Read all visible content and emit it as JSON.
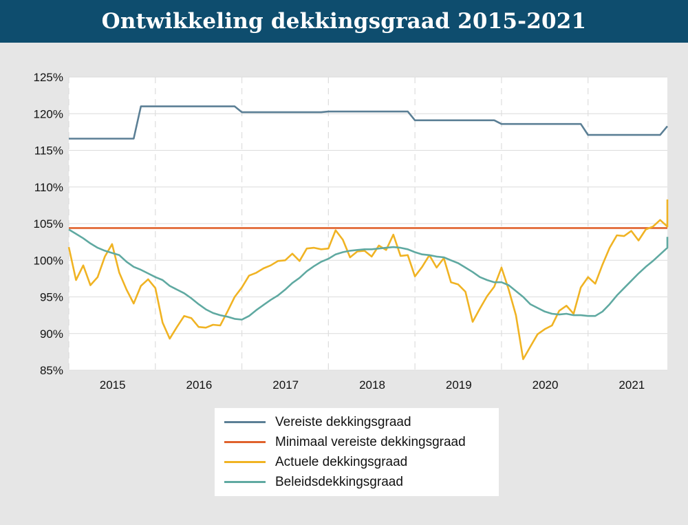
{
  "chart_data": {
    "type": "line",
    "title": "Ontwikkeling dekkingsgraad 2015-2021",
    "x_start": "2015-01",
    "x_end": "2021-12",
    "ylim": [
      85,
      125
    ],
    "yticks": [
      85,
      90,
      95,
      100,
      105,
      110,
      115,
      120,
      125
    ],
    "ytick_labels": [
      "85%",
      "90%",
      "95%",
      "100%",
      "105%",
      "110%",
      "115%",
      "120%",
      "125%"
    ],
    "xtick_labels": [
      "2015",
      "2016",
      "2017",
      "2018",
      "2019",
      "2020",
      "2021"
    ],
    "grid": true,
    "legend_position": "bottom",
    "series": [
      {
        "name": "Vereiste dekkingsgraad",
        "color": "#5b7f95",
        "points": [
          [
            "2015-01",
            116.6
          ],
          [
            "2015-10",
            116.6
          ],
          [
            "2015-11",
            121.0
          ],
          [
            "2016-12",
            121.0
          ],
          [
            "2017-01",
            120.2
          ],
          [
            "2017-12",
            120.2
          ],
          [
            "2018-01",
            120.3
          ],
          [
            "2018-12",
            120.3
          ],
          [
            "2019-01",
            119.1
          ],
          [
            "2019-12",
            119.1
          ],
          [
            "2020-01",
            118.6
          ],
          [
            "2020-12",
            118.6
          ],
          [
            "2021-01",
            117.1
          ],
          [
            "2021-11",
            117.1
          ],
          [
            "2021-12",
            118.3
          ]
        ]
      },
      {
        "name": "Minimaal vereiste dekkingsgraad",
        "color": "#e0622c",
        "points": [
          [
            "2015-01",
            104.4
          ],
          [
            "2021-12",
            104.4
          ]
        ]
      },
      {
        "name": "Actuele dekkingsgraad",
        "color": "#f0b323",
        "points": [
          [
            "2015-01",
            101.8
          ],
          [
            "2015-02",
            97.3
          ],
          [
            "2015-03",
            99.3
          ],
          [
            "2015-04",
            96.6
          ],
          [
            "2015-05",
            97.7
          ],
          [
            "2015-06",
            100.5
          ],
          [
            "2015-07",
            102.2
          ],
          [
            "2015-08",
            98.3
          ],
          [
            "2015-09",
            96.0
          ],
          [
            "2015-10",
            94.1
          ],
          [
            "2015-11",
            96.5
          ],
          [
            "2015-12",
            97.4
          ],
          [
            "2016-01",
            96.2
          ],
          [
            "2016-02",
            91.5
          ],
          [
            "2016-03",
            89.3
          ],
          [
            "2016-04",
            90.9
          ],
          [
            "2016-05",
            92.4
          ],
          [
            "2016-06",
            92.1
          ],
          [
            "2016-07",
            90.9
          ],
          [
            "2016-08",
            90.8
          ],
          [
            "2016-09",
            91.2
          ],
          [
            "2016-10",
            91.1
          ],
          [
            "2016-11",
            93.0
          ],
          [
            "2016-12",
            95.0
          ],
          [
            "2017-01",
            96.3
          ],
          [
            "2017-02",
            97.9
          ],
          [
            "2017-03",
            98.3
          ],
          [
            "2017-04",
            98.9
          ],
          [
            "2017-05",
            99.3
          ],
          [
            "2017-06",
            99.9
          ],
          [
            "2017-07",
            100.0
          ],
          [
            "2017-08",
            100.9
          ],
          [
            "2017-09",
            99.9
          ],
          [
            "2017-10",
            101.6
          ],
          [
            "2017-11",
            101.7
          ],
          [
            "2017-12",
            101.5
          ],
          [
            "2018-01",
            101.6
          ],
          [
            "2018-02",
            104.1
          ],
          [
            "2018-03",
            102.8
          ],
          [
            "2018-04",
            100.4
          ],
          [
            "2018-05",
            101.2
          ],
          [
            "2018-06",
            101.3
          ],
          [
            "2018-07",
            100.5
          ],
          [
            "2018-08",
            102.0
          ],
          [
            "2018-09",
            101.4
          ],
          [
            "2018-10",
            103.5
          ],
          [
            "2018-11",
            100.6
          ],
          [
            "2018-12",
            100.7
          ],
          [
            "2019-01",
            97.8
          ],
          [
            "2019-02",
            99.1
          ],
          [
            "2019-03",
            100.7
          ],
          [
            "2019-04",
            99.0
          ],
          [
            "2019-05",
            100.3
          ],
          [
            "2019-06",
            97.0
          ],
          [
            "2019-07",
            96.7
          ],
          [
            "2019-08",
            95.7
          ],
          [
            "2019-09",
            91.6
          ],
          [
            "2019-10",
            93.4
          ],
          [
            "2019-11",
            95.1
          ],
          [
            "2019-12",
            96.4
          ],
          [
            "2020-01",
            99.0
          ],
          [
            "2020-02",
            96.0
          ],
          [
            "2020-03",
            92.5
          ],
          [
            "2020-04",
            86.5
          ],
          [
            "2020-05",
            88.2
          ],
          [
            "2020-06",
            89.9
          ],
          [
            "2020-07",
            90.6
          ],
          [
            "2020-08",
            91.1
          ],
          [
            "2020-09",
            93.1
          ],
          [
            "2020-10",
            93.8
          ],
          [
            "2020-11",
            92.7
          ],
          [
            "2020-12",
            96.3
          ],
          [
            "2021-01",
            97.7
          ],
          [
            "2021-02",
            96.8
          ],
          [
            "2021-03",
            99.4
          ],
          [
            "2021-04",
            101.7
          ],
          [
            "2021-05",
            103.4
          ],
          [
            "2021-06",
            103.3
          ],
          [
            "2021-07",
            104.0
          ],
          [
            "2021-08",
            102.7
          ],
          [
            "2021-09",
            104.2
          ],
          [
            "2021-10",
            104.6
          ],
          [
            "2021-11",
            105.5
          ],
          [
            "2021-12",
            104.6
          ],
          [
            "2022-01",
            108.3
          ]
        ]
      },
      {
        "name": "Beleidsdekkingsgraad",
        "color": "#5fa9a1",
        "points": [
          [
            "2015-01",
            104.2
          ],
          [
            "2015-02",
            103.6
          ],
          [
            "2015-03",
            103.0
          ],
          [
            "2015-04",
            102.3
          ],
          [
            "2015-05",
            101.7
          ],
          [
            "2015-06",
            101.3
          ],
          [
            "2015-07",
            101.0
          ],
          [
            "2015-08",
            100.7
          ],
          [
            "2015-09",
            99.8
          ],
          [
            "2015-10",
            99.1
          ],
          [
            "2015-11",
            98.7
          ],
          [
            "2015-12",
            98.2
          ],
          [
            "2016-01",
            97.7
          ],
          [
            "2016-02",
            97.3
          ],
          [
            "2016-03",
            96.5
          ],
          [
            "2016-04",
            96.0
          ],
          [
            "2016-05",
            95.5
          ],
          [
            "2016-06",
            94.8
          ],
          [
            "2016-07",
            94.0
          ],
          [
            "2016-08",
            93.3
          ],
          [
            "2016-09",
            92.8
          ],
          [
            "2016-10",
            92.5
          ],
          [
            "2016-11",
            92.3
          ],
          [
            "2016-12",
            92.0
          ],
          [
            "2017-01",
            91.9
          ],
          [
            "2017-02",
            92.4
          ],
          [
            "2017-03",
            93.2
          ],
          [
            "2017-04",
            93.9
          ],
          [
            "2017-05",
            94.6
          ],
          [
            "2017-06",
            95.2
          ],
          [
            "2017-07",
            96.0
          ],
          [
            "2017-08",
            96.9
          ],
          [
            "2017-09",
            97.6
          ],
          [
            "2017-10",
            98.5
          ],
          [
            "2017-11",
            99.2
          ],
          [
            "2017-12",
            99.8
          ],
          [
            "2018-01",
            100.2
          ],
          [
            "2018-02",
            100.8
          ],
          [
            "2018-03",
            101.1
          ],
          [
            "2018-04",
            101.3
          ],
          [
            "2018-05",
            101.4
          ],
          [
            "2018-06",
            101.5
          ],
          [
            "2018-07",
            101.5
          ],
          [
            "2018-08",
            101.6
          ],
          [
            "2018-09",
            101.7
          ],
          [
            "2018-10",
            101.8
          ],
          [
            "2018-11",
            101.7
          ],
          [
            "2018-12",
            101.5
          ],
          [
            "2019-01",
            101.1
          ],
          [
            "2019-02",
            100.8
          ],
          [
            "2019-03",
            100.7
          ],
          [
            "2019-04",
            100.5
          ],
          [
            "2019-05",
            100.4
          ],
          [
            "2019-06",
            100.0
          ],
          [
            "2019-07",
            99.6
          ],
          [
            "2019-08",
            99.0
          ],
          [
            "2019-09",
            98.4
          ],
          [
            "2019-10",
            97.7
          ],
          [
            "2019-11",
            97.3
          ],
          [
            "2019-12",
            97.0
          ],
          [
            "2020-01",
            97.0
          ],
          [
            "2020-02",
            96.6
          ],
          [
            "2020-03",
            95.8
          ],
          [
            "2020-04",
            95.0
          ],
          [
            "2020-05",
            94.0
          ],
          [
            "2020-06",
            93.5
          ],
          [
            "2020-07",
            93.0
          ],
          [
            "2020-08",
            92.7
          ],
          [
            "2020-09",
            92.6
          ],
          [
            "2020-10",
            92.7
          ],
          [
            "2020-11",
            92.5
          ],
          [
            "2020-12",
            92.5
          ],
          [
            "2021-01",
            92.4
          ],
          [
            "2021-02",
            92.4
          ],
          [
            "2021-03",
            93.0
          ],
          [
            "2021-04",
            94.0
          ],
          [
            "2021-05",
            95.2
          ],
          [
            "2021-06",
            96.2
          ],
          [
            "2021-07",
            97.2
          ],
          [
            "2021-08",
            98.2
          ],
          [
            "2021-09",
            99.1
          ],
          [
            "2021-10",
            99.9
          ],
          [
            "2021-11",
            100.8
          ],
          [
            "2021-12",
            101.7
          ],
          [
            "2022-01",
            102.3
          ],
          [
            "2022-02",
            103.2
          ]
        ]
      }
    ]
  }
}
